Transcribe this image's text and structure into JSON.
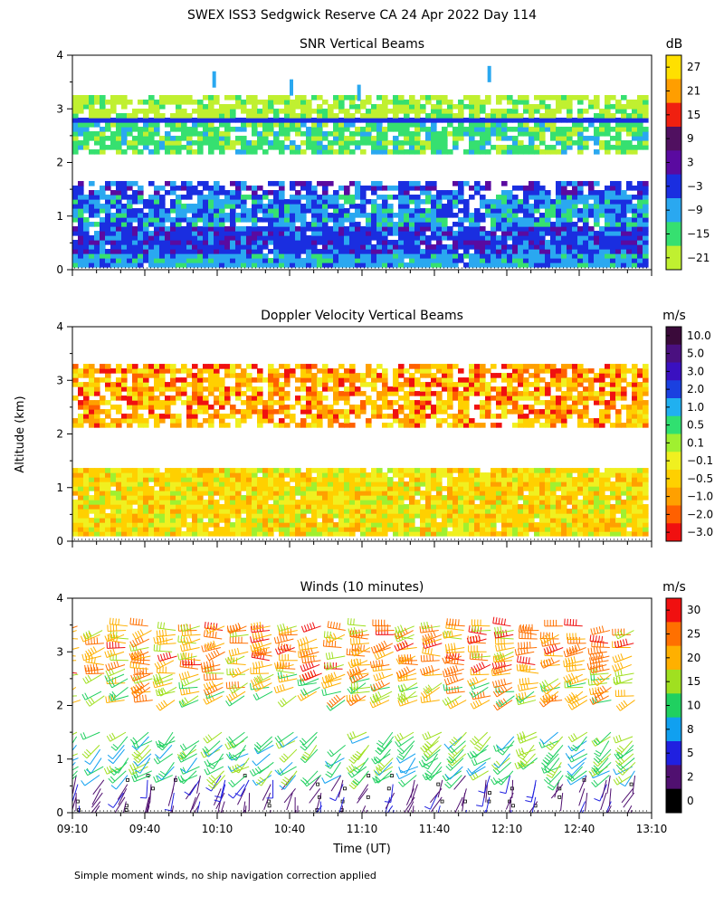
{
  "figure": {
    "title": "SWEX ISS3 Sedgwick Reserve CA  24 Apr 2022 Day 114",
    "y_axis_label": "Altitude (km)",
    "x_axis_label": "Time (UT)",
    "footnote": "Simple moment winds, no ship navigation correction applied"
  },
  "chart_data": [
    {
      "type": "heatmap",
      "title": "SNR Vertical Beams",
      "xlabel": "",
      "ylabel": "Altitude (km)",
      "x_range_minutes": [
        550,
        790
      ],
      "ylim": [
        0,
        4
      ],
      "y_ticks": [
        0,
        1,
        2,
        3,
        4
      ],
      "colorbar": {
        "unit": "dB",
        "tick_labels": [
          "27",
          "21",
          "15",
          "9",
          "3",
          "−3",
          "−9",
          "−15",
          "−21"
        ],
        "colors": [
          "#ffe000",
          "#ff9e00",
          "#f02010",
          "#501060",
          "#5a0aa0",
          "#1a2ee0",
          "#2aa8f0",
          "#36e070",
          "#c0f030"
        ]
      },
      "layers": [
        {
          "from_km": 0.05,
          "to_km": 0.3,
          "dominant": "blue/light blue"
        },
        {
          "from_km": 0.3,
          "to_km": 0.75,
          "dominant": "dark blue"
        },
        {
          "from_km": 0.75,
          "to_km": 1.35,
          "dominant": "light blue/blue"
        },
        {
          "from_km": 1.35,
          "to_km": 1.65,
          "dominant": "blue with gaps"
        },
        {
          "from_km": 1.65,
          "to_km": 2.15,
          "dominant": "no data"
        },
        {
          "from_km": 2.15,
          "to_km": 2.75,
          "dominant": "green/light blue"
        },
        {
          "from_km": 2.75,
          "to_km": 2.8,
          "dominant": "blue (constant band)"
        },
        {
          "from_km": 2.8,
          "to_km": 3.15,
          "dominant": "yellow-green"
        },
        {
          "from_km": 3.15,
          "to_km": 4.0,
          "dominant": "sparse"
        }
      ]
    },
    {
      "type": "heatmap",
      "title": "Doppler Velocity Vertical Beams",
      "xlabel": "",
      "ylabel": "Altitude (km)",
      "x_range_minutes": [
        550,
        790
      ],
      "ylim": [
        0,
        4
      ],
      "y_ticks": [
        0,
        1,
        2,
        3,
        4
      ],
      "colorbar": {
        "unit": "m/s",
        "tick_labels": [
          "10.0",
          "5.0",
          "3.0",
          "2.0",
          "1.0",
          "0.5",
          "0.1",
          "−0.1",
          "−0.5",
          "−1.0",
          "−2.0",
          "−3.0"
        ],
        "colors": [
          "#3a0a3a",
          "#4a1080",
          "#3a10c0",
          "#1a40e0",
          "#20b0f0",
          "#30e070",
          "#a0f030",
          "#f0f020",
          "#ffd000",
          "#ffa000",
          "#ff6000",
          "#f01010"
        ]
      },
      "layers": [
        {
          "from_km": 0.1,
          "to_km": 1.3,
          "dominant": "yellow/orange"
        },
        {
          "from_km": 1.3,
          "to_km": 2.1,
          "dominant": "no data"
        },
        {
          "from_km": 2.1,
          "to_km": 3.2,
          "dominant": "orange/yellow with red patches"
        },
        {
          "from_km": 3.2,
          "to_km": 4.0,
          "dominant": "sparse"
        }
      ]
    },
    {
      "type": "scatter",
      "title": "Winds (10 minutes)",
      "xlabel": "Time (UT)",
      "ylabel": "Altitude (km)",
      "x_range_minutes": [
        550,
        790
      ],
      "ylim": [
        0,
        4
      ],
      "y_ticks": [
        0,
        1,
        2,
        3,
        4
      ],
      "x_tick_minutes": [
        550,
        580,
        610,
        640,
        670,
        700,
        730,
        760,
        790
      ],
      "x_tick_labels": [
        "09:10",
        "09:40",
        "10:10",
        "10:40",
        "11:10",
        "11:40",
        "12:10",
        "12:40",
        "13:10"
      ],
      "colorbar": {
        "unit": "m/s",
        "tick_labels": [
          "30",
          "25",
          "20",
          "15",
          "10",
          "8",
          "5",
          "2",
          "0"
        ],
        "colors": [
          "#f01010",
          "#ff7000",
          "#ffb000",
          "#a0e020",
          "#20d060",
          "#10a0f0",
          "#2020e0",
          "#501070",
          "#000000"
        ]
      },
      "profile_times_minutes": [
        550,
        560,
        570,
        580,
        590,
        600,
        610,
        620,
        630,
        640,
        650,
        660,
        670,
        680,
        690,
        700,
        710,
        720,
        730,
        740,
        750,
        760,
        770,
        780
      ],
      "wind_layers": [
        {
          "from_km": 0.05,
          "to_km": 0.7,
          "speed_ms": [
            1,
            6
          ],
          "direction_deg": 200
        },
        {
          "from_km": 0.7,
          "to_km": 1.55,
          "speed_ms": [
            8,
            18
          ],
          "direction_deg": 230
        },
        {
          "from_km": 2.1,
          "to_km": 2.6,
          "speed_ms": [
            10,
            28
          ],
          "direction_deg": 250
        },
        {
          "from_km": 2.6,
          "to_km": 3.5,
          "speed_ms": [
            18,
            32
          ],
          "direction_deg": 260
        }
      ]
    }
  ]
}
